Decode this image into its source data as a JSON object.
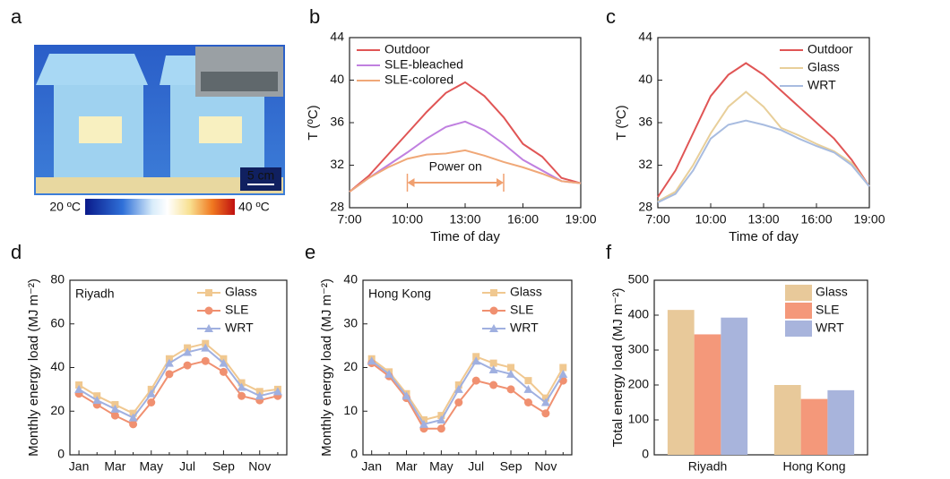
{
  "chart_data": [
    {
      "type": "image",
      "label": "a",
      "colorbar_labels": [
        "20 ºC",
        "40 ºC"
      ],
      "scale_bar": "5 cm"
    },
    {
      "type": "line",
      "label": "b",
      "x_label": "Time of day",
      "y_label": "T (ºC)",
      "x": [
        7,
        8,
        9,
        10,
        11,
        12,
        13,
        14,
        15,
        16,
        17,
        18,
        19
      ],
      "xlim": [
        7,
        19
      ],
      "xticks": [
        {
          "value": 7,
          "label": "7:00"
        },
        {
          "value": 10,
          "label": "10:00"
        },
        {
          "value": 13,
          "label": "13:00"
        },
        {
          "value": 16,
          "label": "16:00"
        },
        {
          "value": 19,
          "label": "19:00"
        }
      ],
      "ylim": [
        28,
        44
      ],
      "yticks": [
        28,
        32,
        36,
        40,
        44
      ],
      "legend": "top-left",
      "annotation": "Power on",
      "annotation_span": [
        10,
        15
      ],
      "series": [
        {
          "name": "Outdoor",
          "color": "#e05555",
          "values": [
            29.5,
            31,
            33,
            35,
            37,
            38.8,
            39.8,
            38.5,
            36.5,
            34,
            32.8,
            30.8,
            30.3
          ]
        },
        {
          "name": "SLE-bleached",
          "color": "#c080e0",
          "values": [
            29.5,
            30.8,
            32,
            33.2,
            34.5,
            35.6,
            36.1,
            35.3,
            34,
            32.5,
            31.5,
            30.5,
            30.3
          ]
        },
        {
          "name": "SLE-colored",
          "color": "#f0a878",
          "values": [
            29.5,
            30.8,
            31.8,
            32.6,
            33,
            33.1,
            33.4,
            32.9,
            32.3,
            31.8,
            31.2,
            30.5,
            30.3
          ]
        }
      ]
    },
    {
      "type": "line",
      "label": "c",
      "x_label": "Time of day",
      "y_label": "T (ºC)",
      "x": [
        7,
        8,
        9,
        10,
        11,
        12,
        13,
        14,
        15,
        16,
        17,
        18,
        19
      ],
      "xlim": [
        7,
        19
      ],
      "xticks": [
        {
          "value": 7,
          "label": "7:00"
        },
        {
          "value": 10,
          "label": "10:00"
        },
        {
          "value": 13,
          "label": "13:00"
        },
        {
          "value": 16,
          "label": "16:00"
        },
        {
          "value": 19,
          "label": "19:00"
        }
      ],
      "ylim": [
        28,
        44
      ],
      "yticks": [
        28,
        32,
        36,
        40,
        44
      ],
      "legend": "top-right",
      "series": [
        {
          "name": "Outdoor",
          "color": "#e05555",
          "values": [
            29,
            31.5,
            35,
            38.5,
            40.5,
            41.6,
            40.5,
            39,
            37.5,
            36,
            34.5,
            32.5,
            30
          ]
        },
        {
          "name": "Glass",
          "color": "#e8cf9a",
          "values": [
            28.6,
            29.5,
            32,
            35,
            37.5,
            38.9,
            37.5,
            35.5,
            34.8,
            34,
            33.3,
            32.2,
            30
          ]
        },
        {
          "name": "WRT",
          "color": "#a8bce0",
          "values": [
            28.5,
            29.3,
            31.5,
            34.5,
            35.8,
            36.2,
            35.8,
            35.3,
            34.5,
            33.8,
            33.2,
            32,
            30
          ]
        }
      ]
    },
    {
      "type": "line",
      "label": "d",
      "title": "Riyadh",
      "y_label": "Monthly energy load (MJ m⁻²)",
      "categories": [
        "Jan",
        null,
        "Mar",
        null,
        "May",
        null,
        "Jul",
        null,
        "Sep",
        null,
        "Nov",
        null
      ],
      "ylim": [
        0,
        80
      ],
      "yticks": [
        0,
        20,
        40,
        60,
        80
      ],
      "legend": "top-right",
      "series": [
        {
          "name": "Glass",
          "color": "#f0c890",
          "marker": "square",
          "values": [
            32,
            27,
            23,
            19,
            30,
            44,
            49,
            51,
            44,
            33,
            29,
            30
          ]
        },
        {
          "name": "SLE",
          "color": "#f09070",
          "marker": "circle",
          "values": [
            28,
            23,
            18,
            14,
            24,
            37,
            41,
            43,
            38,
            27,
            25,
            27
          ]
        },
        {
          "name": "WRT",
          "color": "#a0b0e0",
          "marker": "triangle",
          "values": [
            30,
            25,
            21,
            17,
            28,
            42,
            47,
            49,
            42,
            31,
            27,
            29
          ]
        }
      ]
    },
    {
      "type": "line",
      "label": "e",
      "title": "Hong Kong",
      "y_label": "Monthly energy load (MJ m⁻²)",
      "categories": [
        "Jan",
        null,
        "Mar",
        null,
        "May",
        null,
        "Jul",
        null,
        "Sep",
        null,
        "Nov",
        null
      ],
      "ylim": [
        0,
        40
      ],
      "yticks": [
        0,
        10,
        20,
        30,
        40
      ],
      "legend": "top-right",
      "series": [
        {
          "name": "Glass",
          "color": "#f0c890",
          "marker": "square",
          "values": [
            22,
            19,
            14,
            8,
            9,
            16,
            22.5,
            21,
            20,
            17,
            13,
            20
          ]
        },
        {
          "name": "SLE",
          "color": "#f09070",
          "marker": "circle",
          "values": [
            21,
            18,
            13,
            6,
            6,
            12,
            17,
            16,
            15,
            12,
            9.5,
            17
          ]
        },
        {
          "name": "WRT",
          "color": "#a0b0e0",
          "marker": "triangle",
          "values": [
            21.5,
            18.5,
            13.5,
            7,
            8,
            15,
            21.5,
            19.5,
            18.5,
            15,
            12,
            18.5
          ]
        }
      ]
    },
    {
      "type": "bar",
      "label": "f",
      "y_label": "Total energy load (MJ m⁻²)",
      "categories": [
        "Riyadh",
        "Hong Kong"
      ],
      "ylim": [
        0,
        500
      ],
      "yticks": [
        0,
        100,
        200,
        300,
        400,
        500
      ],
      "legend": "top-right",
      "series": [
        {
          "name": "Glass",
          "color": "#e8c99a",
          "values": [
            415,
            200
          ]
        },
        {
          "name": "SLE",
          "color": "#f4987a",
          "values": [
            345,
            160
          ]
        },
        {
          "name": "WRT",
          "color": "#a8b4dc",
          "values": [
            393,
            185
          ]
        }
      ]
    }
  ]
}
